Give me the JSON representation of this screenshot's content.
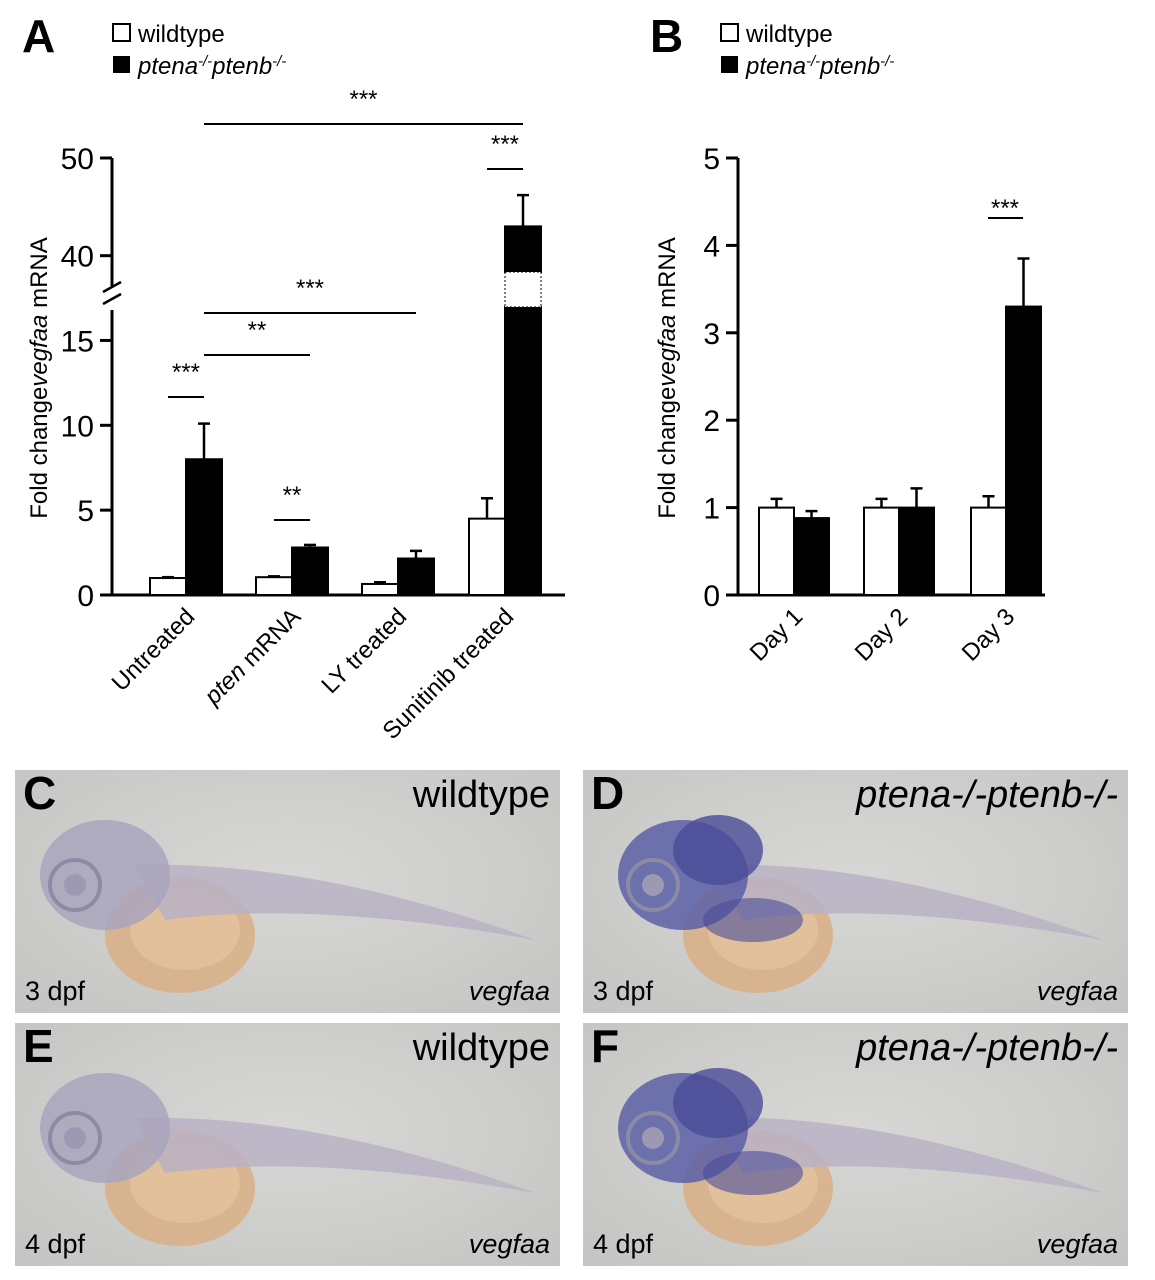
{
  "chart_data": [
    {
      "panel": "A",
      "type": "bar",
      "ylabel_pre": "Fold change",
      "ylabel_gene": "vegfaa",
      "ylabel_post": " mRNA",
      "legend": [
        {
          "name": "wildtype",
          "italic": false
        },
        {
          "name": "ptena-/-ptenb-/-",
          "italic": true
        }
      ],
      "categories": [
        "Untreated",
        "pten mRNA",
        "LY treated",
        "Sunitinib treated"
      ],
      "category_italic_prefix": [
        "",
        "pten",
        "",
        ""
      ],
      "category_suffix": [
        "Untreated",
        " mRNA",
        "LY treated",
        "Sunitinib treated"
      ],
      "series": [
        {
          "name": "wildtype",
          "color": "#ffffff",
          "values": [
            1.0,
            1.05,
            0.65,
            4.5
          ],
          "errors": [
            0.05,
            0.05,
            0.1,
            1.2
          ]
        },
        {
          "name": "ptena-/-ptenb-/-",
          "color": "#000000",
          "values": [
            8.0,
            2.8,
            2.15,
            43.0
          ],
          "errors": [
            2.1,
            0.15,
            0.45,
            3.2
          ]
        }
      ],
      "ylim_lower": [
        0,
        16.5
      ],
      "ylim_upper": [
        37,
        50
      ],
      "y_break": true,
      "yticks": [
        "0",
        "5",
        "10",
        "15",
        "40",
        "50"
      ],
      "significance": [
        {
          "label": "***",
          "from": "Untreated wildtype",
          "to": "Untreated ptena-/-ptenb-/-"
        },
        {
          "label": "**",
          "from": "pten mRNA wildtype",
          "to": "pten mRNA ptena-/-ptenb-/-"
        },
        {
          "label": "***",
          "from": "Sunitinib treated wildtype",
          "to": "Sunitinib treated ptena-/-ptenb-/-"
        },
        {
          "label": "**",
          "from": "Untreated ptena-/-ptenb-/-",
          "to": "pten mRNA ptena-/-ptenb-/-"
        },
        {
          "label": "***",
          "from": "Untreated ptena-/-ptenb-/-",
          "to": "LY treated ptena-/-ptenb-/-"
        },
        {
          "label": "***",
          "from": "Untreated ptena-/-ptenb-/-",
          "to": "Sunitinib treated ptena-/-ptenb-/-"
        }
      ]
    },
    {
      "panel": "B",
      "type": "bar",
      "ylabel_pre": "Fold change",
      "ylabel_gene": "vegfaa",
      "ylabel_post": " mRNA",
      "legend": [
        {
          "name": "wildtype",
          "italic": false
        },
        {
          "name": "ptena-/-ptenb-/-",
          "italic": true
        }
      ],
      "categories": [
        "Day 1",
        "Day 2",
        "Day 3"
      ],
      "series": [
        {
          "name": "wildtype",
          "color": "#ffffff",
          "values": [
            1.0,
            1.0,
            1.0
          ],
          "errors": [
            0.1,
            0.1,
            0.13
          ]
        },
        {
          "name": "ptena-/-ptenb-/-",
          "color": "#000000",
          "values": [
            0.88,
            1.0,
            3.3
          ],
          "errors": [
            0.08,
            0.22,
            0.55
          ]
        }
      ],
      "ylim": [
        0,
        5
      ],
      "yticks": [
        "0",
        "1",
        "2",
        "3",
        "4",
        "5"
      ],
      "significance": [
        {
          "label": "***",
          "from": "Day 3 wildtype",
          "to": "Day 3 ptena-/-ptenb-/-"
        }
      ]
    }
  ],
  "photos": [
    {
      "panel": "C",
      "genotype": "wildtype",
      "genotype_italic": false,
      "stage": "3 dpf",
      "gene": "vegfaa",
      "stain": "light"
    },
    {
      "panel": "D",
      "genotype": "ptena-/-ptenb-/-",
      "genotype_italic": true,
      "stage": "3 dpf",
      "gene": "vegfaa",
      "stain": "strong"
    },
    {
      "panel": "E",
      "genotype": "wildtype",
      "genotype_italic": false,
      "stage": "4 dpf",
      "gene": "vegfaa",
      "stain": "light"
    },
    {
      "panel": "F",
      "genotype": "ptena-/-ptenb-/-",
      "genotype_italic": true,
      "stage": "4 dpf",
      "gene": "vegfaa",
      "stain": "strong"
    }
  ]
}
